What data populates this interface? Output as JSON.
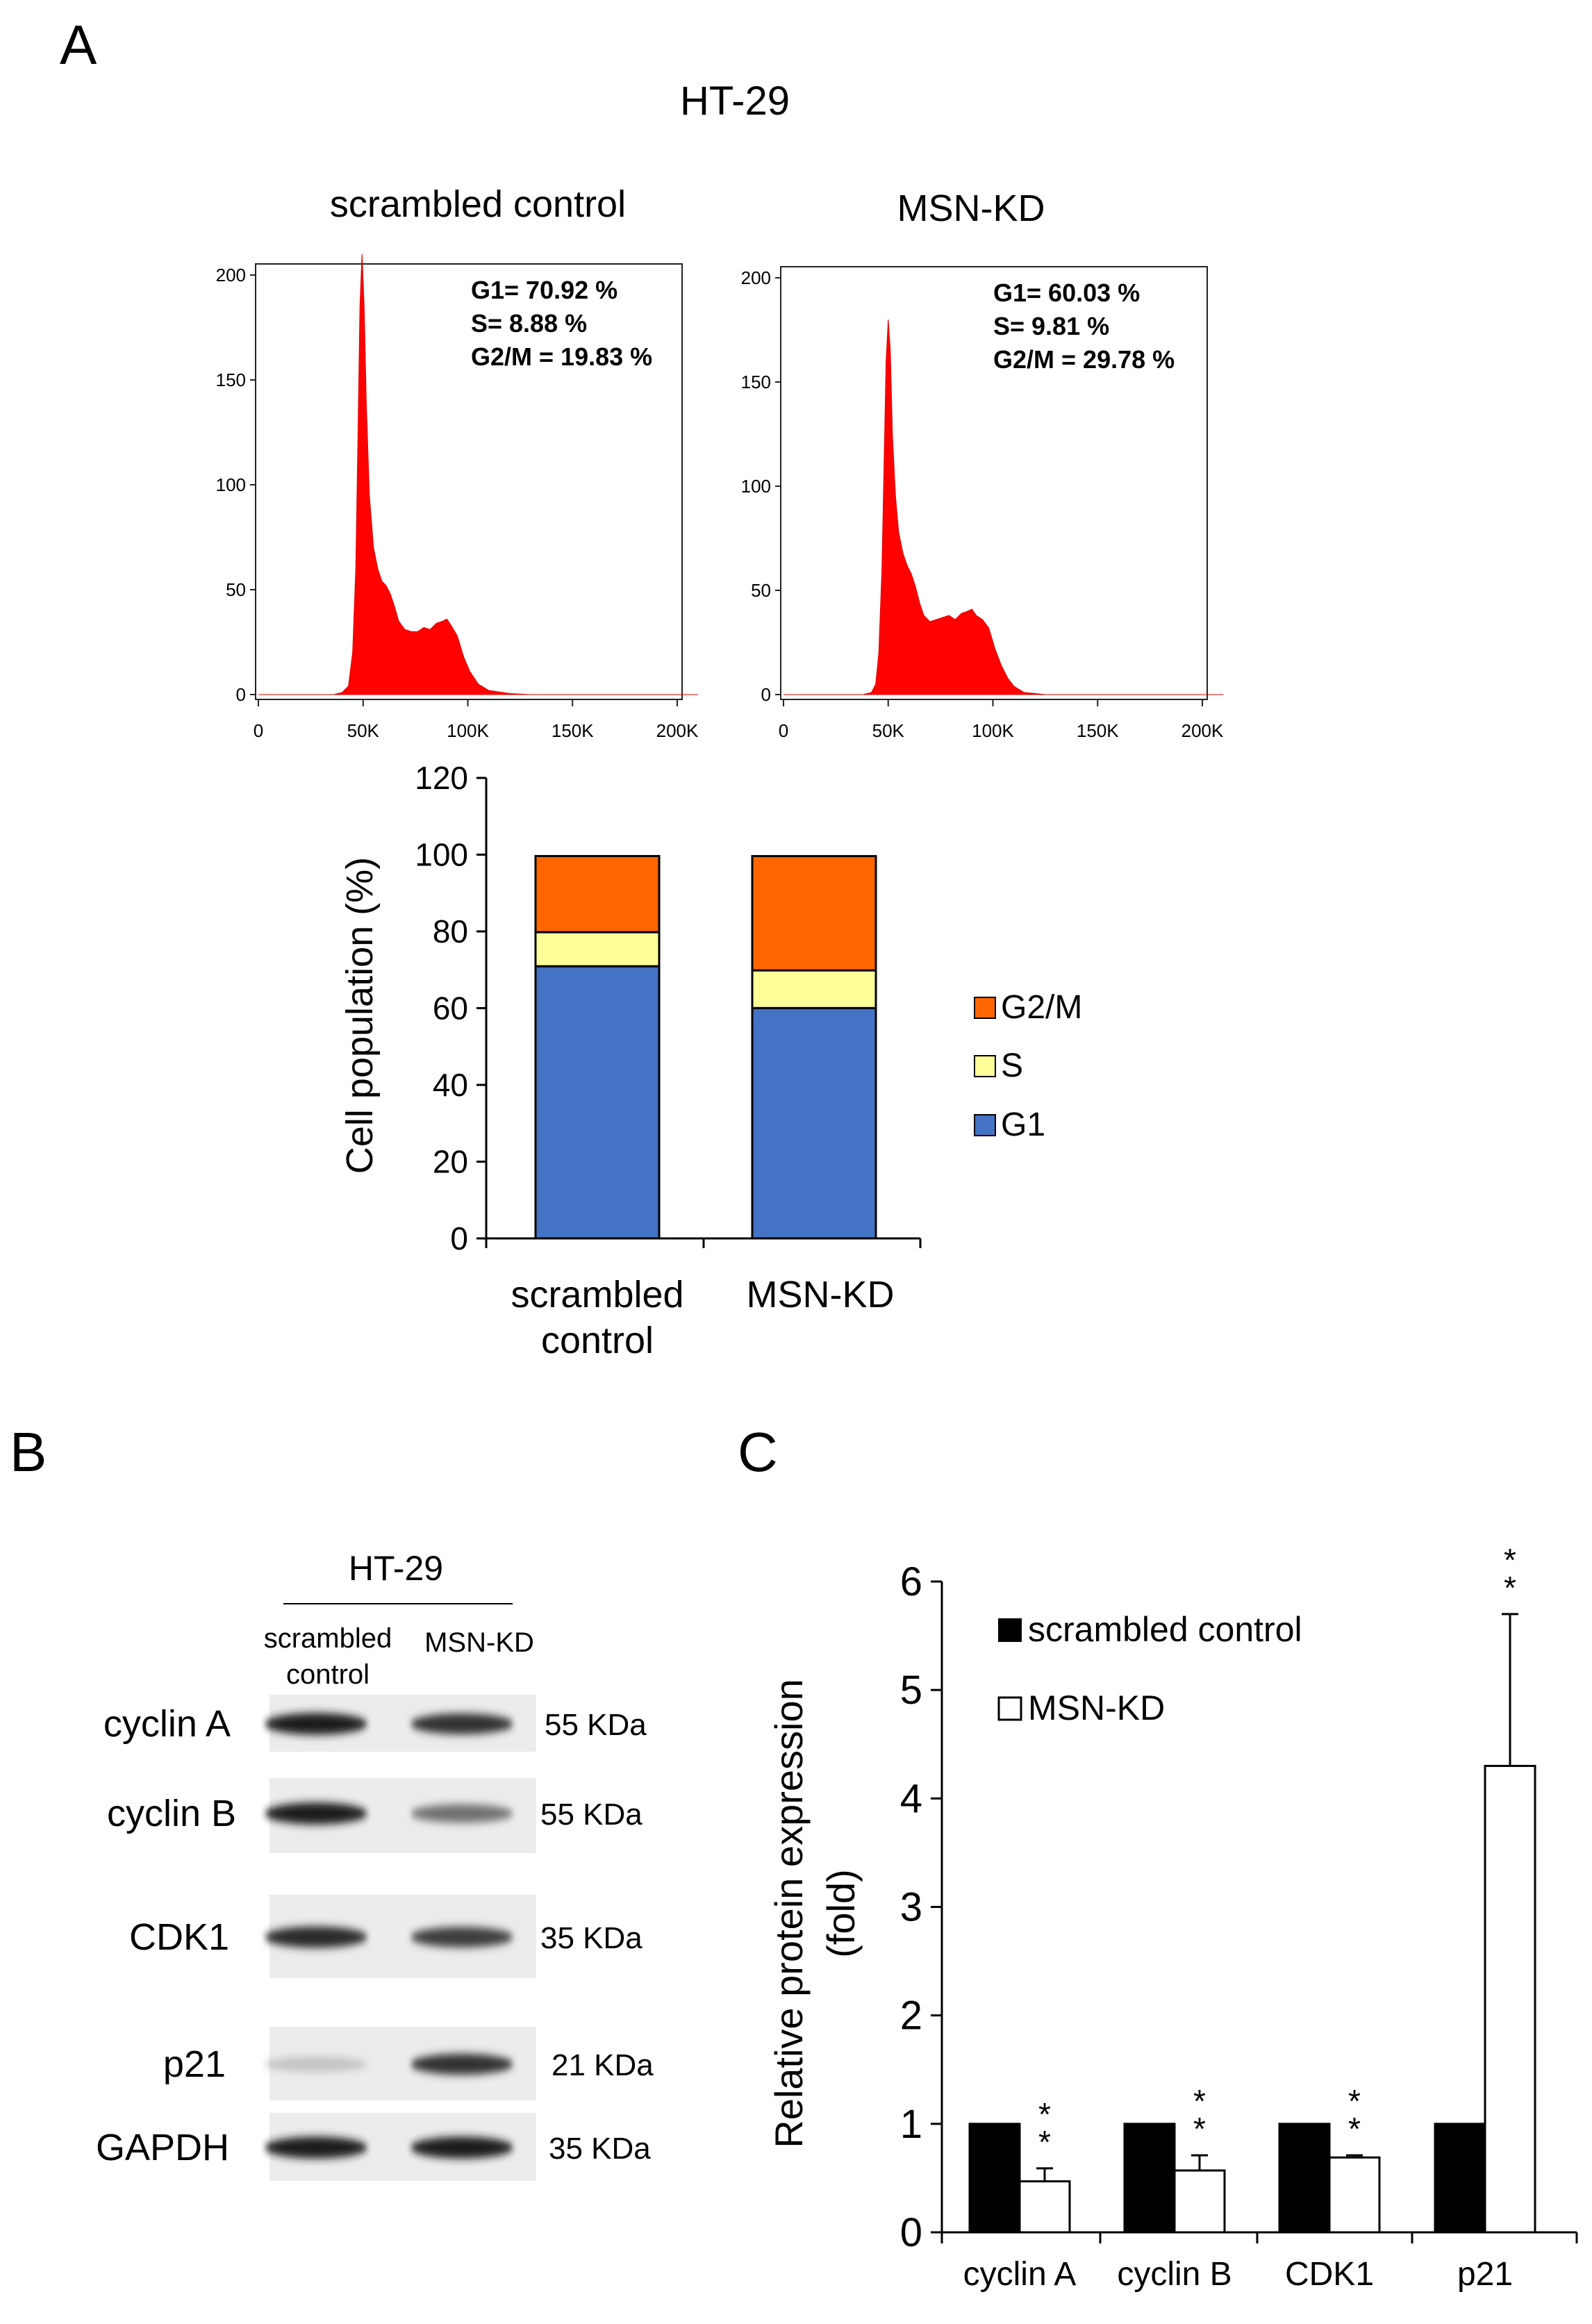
{
  "panels": {
    "a": "A",
    "b": "B",
    "c": "C"
  },
  "colors": {
    "histogram": "#ff0000",
    "g1": "#4472c4",
    "s": "#ffff99",
    "g2m": "#ff6600",
    "scrambled_bar": "#000000",
    "msn_bar": "#ffffff"
  },
  "histograms": {
    "cell_line": "HT-29",
    "panels": [
      {
        "title": "scrambled control",
        "stats": [
          "G1= 70.92 %",
          "S= 8.88 %",
          "G2/M = 19.83 %"
        ],
        "y_ticks": [
          "0",
          "50",
          "100",
          "150",
          "200"
        ],
        "x_ticks": [
          "0",
          "50K",
          "100K",
          "150K",
          "200K"
        ],
        "profile": [
          [
            0,
            0
          ],
          [
            36,
            0
          ],
          [
            40,
            1
          ],
          [
            43,
            4
          ],
          [
            45,
            20
          ],
          [
            46.5,
            60
          ],
          [
            47.5,
            120
          ],
          [
            48.5,
            185
          ],
          [
            49.5,
            210
          ],
          [
            50.5,
            185
          ],
          [
            51.5,
            140
          ],
          [
            53,
            95
          ],
          [
            55,
            70
          ],
          [
            57,
            60
          ],
          [
            59,
            54
          ],
          [
            61,
            52
          ],
          [
            63,
            48
          ],
          [
            65,
            42
          ],
          [
            67,
            35
          ],
          [
            70,
            31
          ],
          [
            73,
            30
          ],
          [
            76,
            30
          ],
          [
            79,
            32
          ],
          [
            82,
            31
          ],
          [
            85,
            34
          ],
          [
            88,
            35
          ],
          [
            90,
            36
          ],
          [
            92,
            33
          ],
          [
            95,
            28
          ],
          [
            98,
            18
          ],
          [
            101,
            11
          ],
          [
            105,
            5
          ],
          [
            110,
            2
          ],
          [
            120,
            0.5
          ],
          [
            130,
            0
          ],
          [
            210,
            0
          ]
        ]
      },
      {
        "title": "MSN-KD",
        "stats": [
          "G1= 60.03 %",
          "S= 9.81 %",
          "G2/M = 29.78 %"
        ],
        "y_ticks": [
          "0",
          "50",
          "100",
          "150",
          "200"
        ],
        "x_ticks": [
          "0",
          "50K",
          "100K",
          "150K",
          "200K"
        ],
        "profile": [
          [
            0,
            0
          ],
          [
            38,
            0
          ],
          [
            42,
            1
          ],
          [
            44,
            5
          ],
          [
            45.5,
            20
          ],
          [
            47,
            60
          ],
          [
            48,
            110
          ],
          [
            49,
            160
          ],
          [
            50,
            180
          ],
          [
            51,
            165
          ],
          [
            52,
            125
          ],
          [
            53.5,
            95
          ],
          [
            55,
            78
          ],
          [
            57,
            68
          ],
          [
            59,
            62
          ],
          [
            61,
            58
          ],
          [
            63,
            52
          ],
          [
            65,
            44
          ],
          [
            67,
            38
          ],
          [
            70,
            35
          ],
          [
            73,
            36
          ],
          [
            76,
            37
          ],
          [
            79,
            38
          ],
          [
            82,
            36
          ],
          [
            85,
            39
          ],
          [
            88,
            40
          ],
          [
            90,
            41
          ],
          [
            92,
            38
          ],
          [
            95,
            36
          ],
          [
            98,
            32
          ],
          [
            101,
            22
          ],
          [
            104,
            14
          ],
          [
            107,
            8
          ],
          [
            110,
            4
          ],
          [
            115,
            1
          ],
          [
            125,
            0
          ],
          [
            210,
            0
          ]
        ]
      }
    ]
  },
  "chart_data": [
    {
      "type": "bar",
      "stacked": true,
      "categories": [
        "scrambled control",
        "MSN-KD"
      ],
      "series": [
        {
          "name": "G1",
          "values": [
            70.92,
            60.03
          ]
        },
        {
          "name": "S",
          "values": [
            8.88,
            9.81
          ]
        },
        {
          "name": "G2/M",
          "values": [
            19.83,
            29.78
          ]
        }
      ],
      "xlabel": "",
      "ylabel": "Cell population (%)",
      "ylim": [
        0,
        120
      ],
      "y_ticks": [
        "0",
        "20",
        "40",
        "60",
        "80",
        "100",
        "120"
      ],
      "legend": [
        "G2/M",
        "S",
        "G1"
      ],
      "legend_position": "right"
    },
    {
      "type": "bar",
      "categories": [
        "cyclin A",
        "cyclin B",
        "CDK1",
        "p21"
      ],
      "series": [
        {
          "name": "scrambled control",
          "values": [
            1,
            1,
            1,
            1
          ]
        },
        {
          "name": "MSN-KD",
          "values": [
            0.47,
            0.57,
            0.69,
            4.3
          ],
          "error": [
            0.12,
            0.14,
            0.02,
            1.4
          ]
        }
      ],
      "significance": [
        "* *",
        "* *",
        "* *",
        "* *"
      ],
      "xlabel": "",
      "ylabel_lines": [
        "Relative protein expression",
        "(fold)"
      ],
      "ylim": [
        0,
        6
      ],
      "y_ticks": [
        "0",
        "1",
        "2",
        "3",
        "4",
        "5",
        "6"
      ],
      "legend_position": "top-left"
    }
  ],
  "blot": {
    "cell_line": "HT-29",
    "col1": [
      "scrambled",
      "control"
    ],
    "col2": "MSN-KD",
    "rows": [
      {
        "label": "cyclin A",
        "kda": "55 KDa",
        "i1": 0.95,
        "i2": 0.85
      },
      {
        "label": "cyclin B",
        "kda": "55 KDa",
        "i1": 0.95,
        "i2": 0.55
      },
      {
        "label": "CDK1",
        "kda": "35 KDa",
        "i1": 0.9,
        "i2": 0.8
      },
      {
        "label": "p21",
        "kda": "21 KDa",
        "i1": 0.15,
        "i2": 0.85
      },
      {
        "label": "GAPDH",
        "kda": "35 KDa",
        "i1": 0.95,
        "i2": 0.95
      }
    ]
  }
}
